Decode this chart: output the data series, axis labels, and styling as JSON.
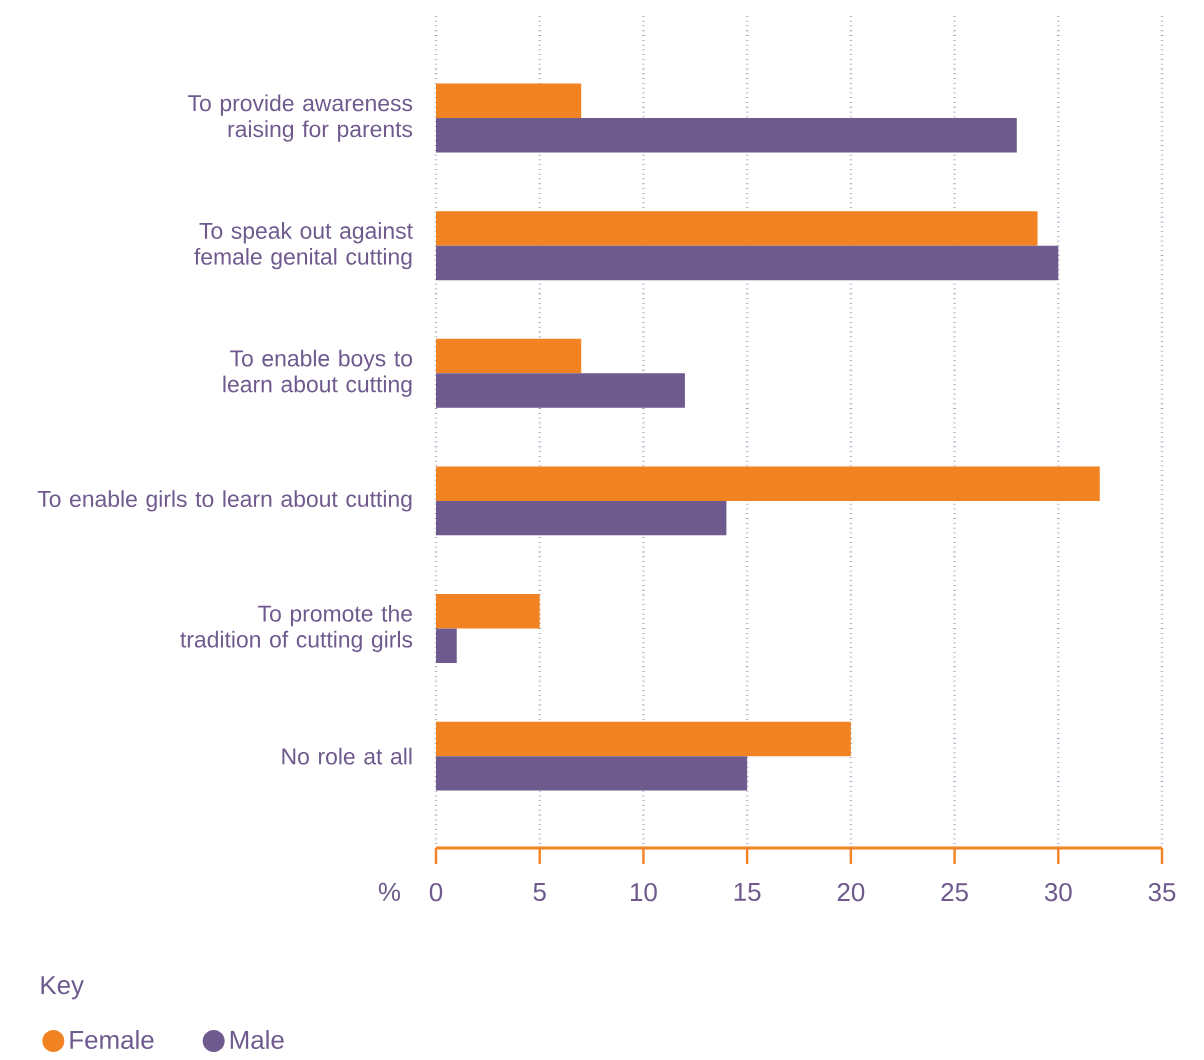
{
  "chart_data": {
    "type": "bar",
    "orientation": "horizontal",
    "categories": [
      "To provide awareness raising for parents",
      "To speak out against female genital cutting",
      "To enable boys to learn about cutting",
      "To enable girls to learn about cutting",
      "To promote the tradition of cutting girls",
      "No role at all"
    ],
    "series": [
      {
        "name": "Female",
        "color": "#f28322",
        "values": [
          7,
          29,
          7,
          32,
          5,
          20
        ]
      },
      {
        "name": "Male",
        "color": "#6f5a8e",
        "values": [
          28,
          30,
          12,
          14,
          1,
          15
        ]
      }
    ],
    "xlabel": "%",
    "xlim": [
      0,
      35
    ],
    "xticks": [
      0,
      5,
      10,
      15,
      20,
      25,
      30,
      35
    ],
    "grid": "x",
    "legend": "bottom",
    "legend_title": "Key"
  }
}
